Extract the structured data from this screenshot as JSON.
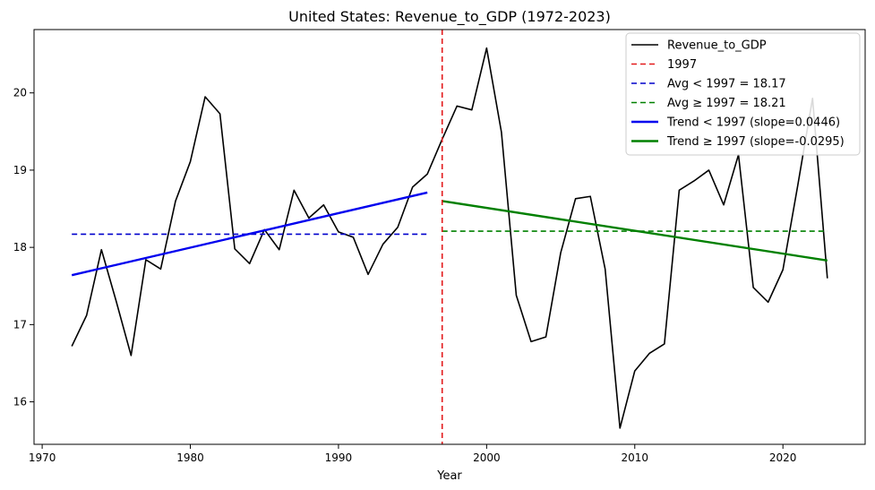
{
  "chart_data": {
    "type": "line",
    "title": "United States: Revenue_to_GDP (1972-2023)",
    "xlabel": "Year",
    "ylabel": "",
    "xlim": [
      1969.45,
      2025.55
    ],
    "ylim": [
      15.45,
      20.82
    ],
    "xticks": [
      1970,
      1980,
      1990,
      2000,
      2010,
      2020
    ],
    "yticks": [
      16,
      17,
      18,
      19,
      20
    ],
    "grid": false,
    "legend_position": "top-right",
    "split_year": 1997,
    "colors": {
      "series": "#000000",
      "split": "#e31a1c",
      "avg_before": "#0000cc",
      "avg_after": "#008000",
      "trend_before": "#0000ee",
      "trend_after": "#008000"
    },
    "series": [
      {
        "name": "Revenue_to_GDP",
        "x": [
          1972,
          1973,
          1974,
          1975,
          1976,
          1977,
          1978,
          1979,
          1980,
          1981,
          1982,
          1983,
          1984,
          1985,
          1986,
          1987,
          1988,
          1989,
          1990,
          1991,
          1992,
          1993,
          1994,
          1995,
          1996,
          1997,
          1998,
          1999,
          2000,
          2001,
          2002,
          2003,
          2004,
          2005,
          2006,
          2007,
          2008,
          2009,
          2010,
          2011,
          2012,
          2013,
          2014,
          2015,
          2016,
          2017,
          2018,
          2019,
          2020,
          2021,
          2022,
          2023
        ],
        "values": [
          16.72,
          17.12,
          17.97,
          17.3,
          16.6,
          17.84,
          17.72,
          18.6,
          19.11,
          19.95,
          19.73,
          17.98,
          17.79,
          18.23,
          17.97,
          18.74,
          18.38,
          18.55,
          18.2,
          18.13,
          17.65,
          18.04,
          18.26,
          18.78,
          18.95,
          19.4,
          19.83,
          19.78,
          20.58,
          19.49,
          17.38,
          16.78,
          16.84,
          17.93,
          18.63,
          18.66,
          17.72,
          15.66,
          16.4,
          16.63,
          16.75,
          18.74,
          18.86,
          19.0,
          18.55,
          19.2,
          17.48,
          17.29,
          17.71,
          18.8,
          19.93,
          17.6
        ]
      }
    ],
    "reference_lines": [
      {
        "label": "1997",
        "orientation": "vertical",
        "x": 1997,
        "style": "dashed"
      },
      {
        "label": "Avg < 1997 = 18.17",
        "orientation": "horizontal",
        "y": 18.17,
        "x_range": [
          1972,
          1996
        ],
        "style": "dashed"
      },
      {
        "label": "Avg ≥ 1997 = 18.21",
        "orientation": "horizontal",
        "y": 18.21,
        "x_range": [
          1997,
          2023
        ],
        "style": "dashed"
      }
    ],
    "trend_lines": [
      {
        "label": "Trend < 1997 (slope=0.0446)",
        "x_range": [
          1972,
          1996
        ],
        "y_range": [
          17.64,
          18.71
        ]
      },
      {
        "label": "Trend ≥ 1997 (slope=-0.0295)",
        "x_range": [
          1997,
          2023
        ],
        "y_range": [
          18.6,
          17.83
        ]
      }
    ]
  }
}
